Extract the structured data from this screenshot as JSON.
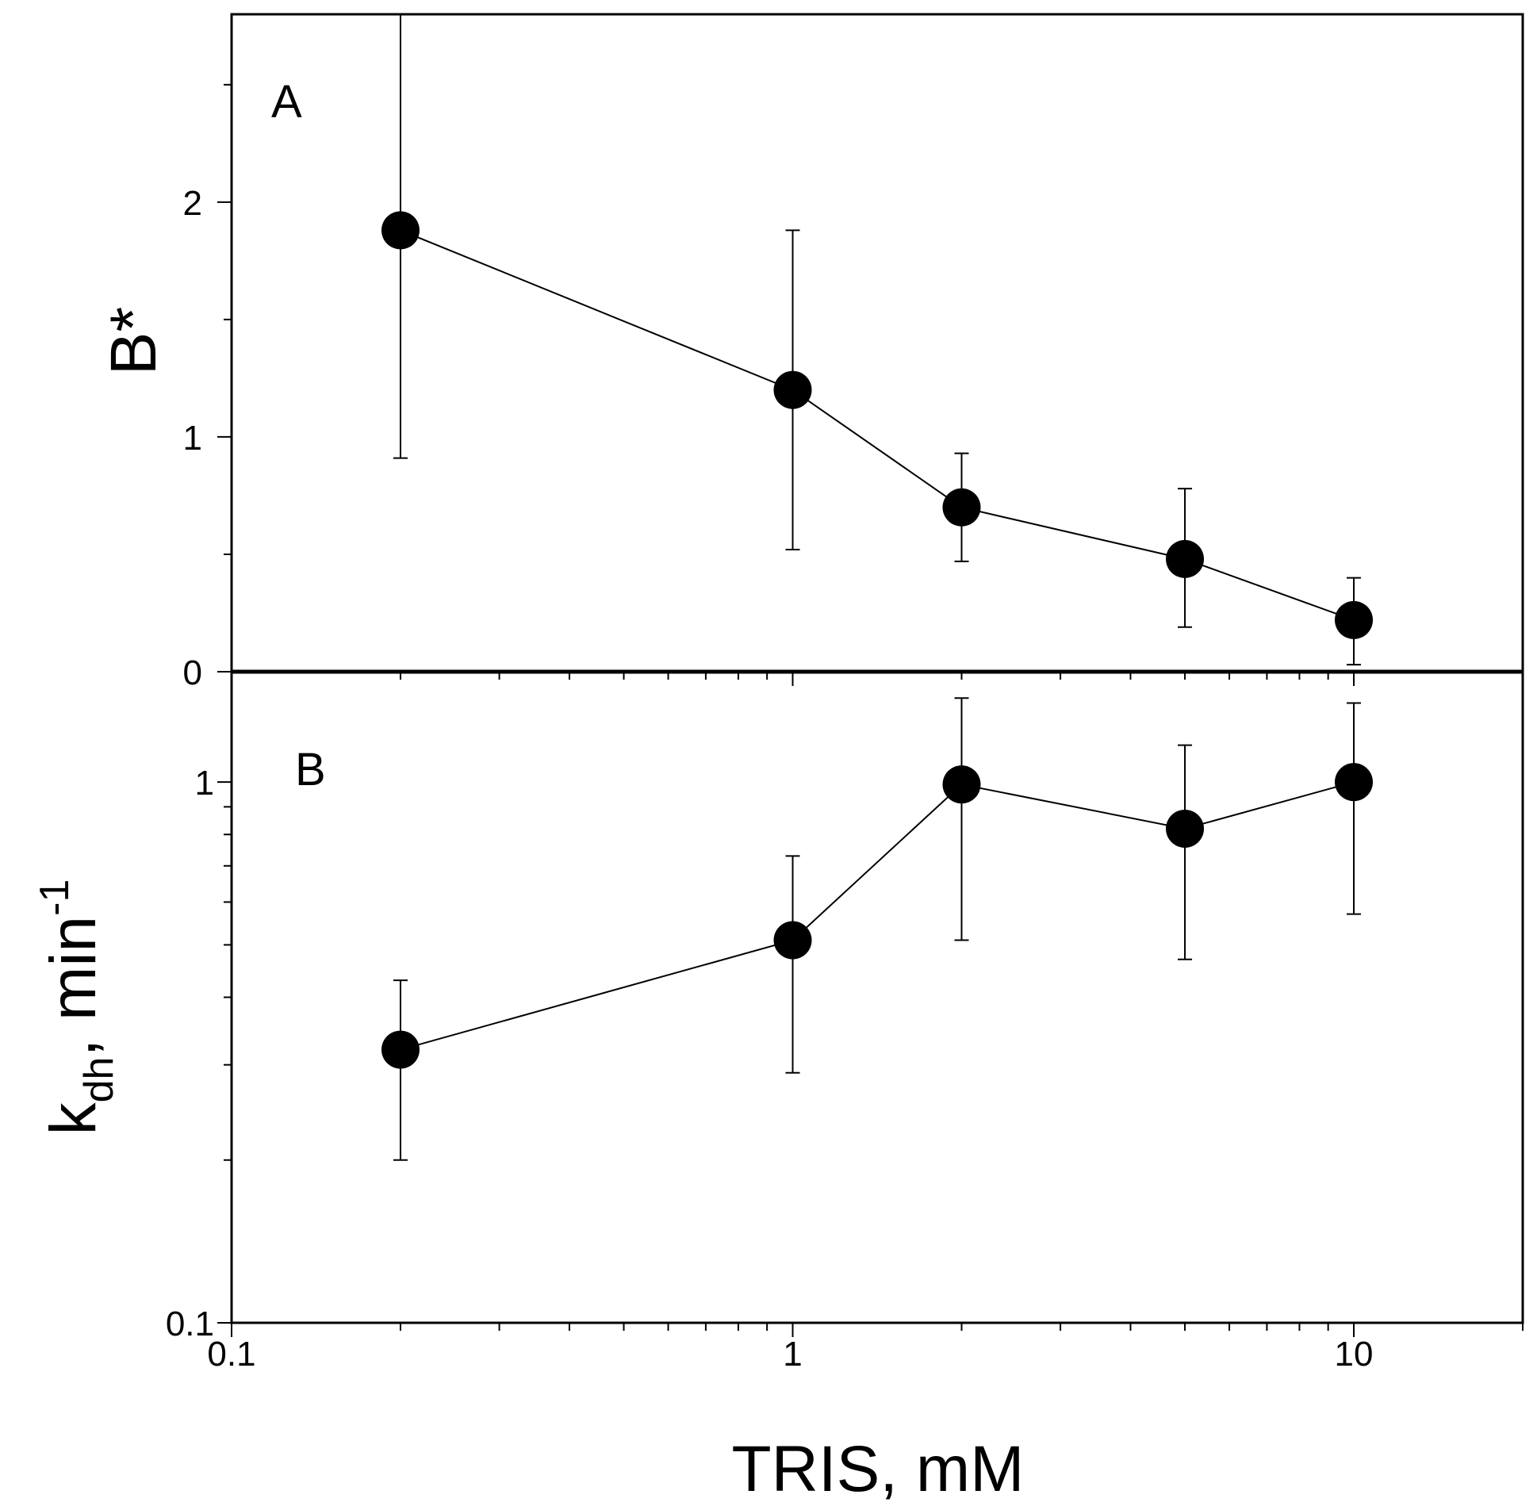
{
  "chart_data": [
    {
      "panel": "A",
      "type": "line",
      "xscale": "log",
      "xlim": [
        0.1,
        20
      ],
      "ylim": [
        0,
        2.8
      ],
      "xlabel": "TRIS, mM",
      "ylabel": "B*",
      "y_ticks": [
        "0",
        "1",
        "2"
      ],
      "y_tick_values": [
        0,
        1,
        2
      ],
      "series": [
        {
          "name": "B*",
          "points": [
            {
              "x": 0.2,
              "y": 1.88,
              "lo": 0.91,
              "hi": 2.8
            },
            {
              "x": 1,
              "y": 1.2,
              "lo": 0.52,
              "hi": 1.88
            },
            {
              "x": 2,
              "y": 0.7,
              "lo": 0.47,
              "hi": 0.93
            },
            {
              "x": 5,
              "y": 0.48,
              "lo": 0.19,
              "hi": 0.78
            },
            {
              "x": 10,
              "y": 0.22,
              "lo": 0.03,
              "hi": 0.4
            }
          ]
        }
      ]
    },
    {
      "panel": "B",
      "type": "line",
      "xscale": "log",
      "yscale": "log",
      "xlim": [
        0.1,
        20
      ],
      "ylim": [
        0.1,
        1.6
      ],
      "xlabel": "TRIS, mM",
      "ylabel": "k_dh, min^-1",
      "ylabel_parts": {
        "main": "k",
        "sub": "dh",
        "rest": ", min",
        "sup": "-1"
      },
      "y_ticks": [
        "0.1",
        "1"
      ],
      "y_tick_values": [
        0.1,
        1
      ],
      "x_ticks": [
        "0.1",
        "1",
        "10"
      ],
      "x_tick_values": [
        0.1,
        1,
        10
      ],
      "series": [
        {
          "name": "k_dh",
          "points": [
            {
              "x": 0.2,
              "y": 0.32,
              "lo": 0.2,
              "hi": 0.43
            },
            {
              "x": 1,
              "y": 0.51,
              "lo": 0.29,
              "hi": 0.73
            },
            {
              "x": 2,
              "y": 0.99,
              "lo": 0.51,
              "hi": 1.43
            },
            {
              "x": 5,
              "y": 0.82,
              "lo": 0.47,
              "hi": 1.17
            },
            {
              "x": 10,
              "y": 1.0,
              "lo": 0.57,
              "hi": 1.4
            }
          ]
        }
      ]
    }
  ],
  "labels": {
    "panel_a": "A",
    "panel_b": "B",
    "x_title": "TRIS, mM",
    "y_title_a": "B*",
    "y_title_b_main": "k",
    "y_title_b_sub": "dh",
    "y_title_b_rest": ", min",
    "y_title_b_sup": "-1"
  }
}
